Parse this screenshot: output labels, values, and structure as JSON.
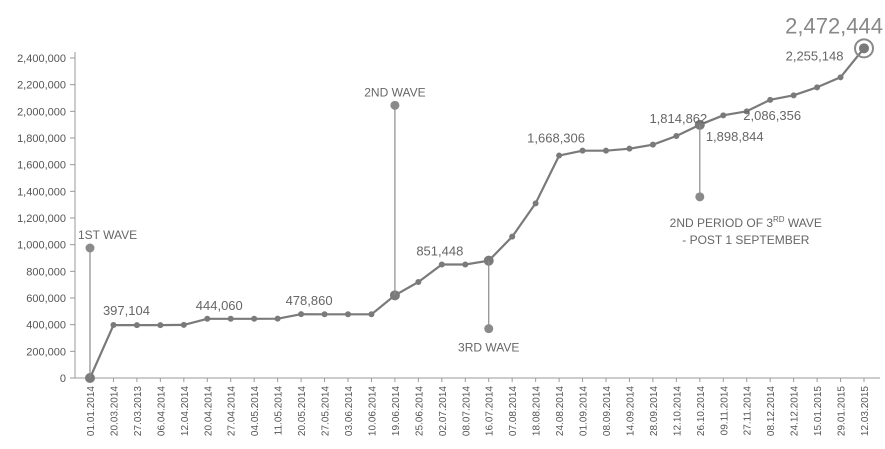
{
  "chart_data": {
    "type": "line",
    "xlabel": "",
    "ylabel": "",
    "ylim": [
      0,
      2400000
    ],
    "ytick_step": 200000,
    "ytick_labels": [
      "0",
      "200,000",
      "400,000",
      "600,000",
      "800,000",
      "1,000,000",
      "1,200,000",
      "1,400,000",
      "1,600,000",
      "1,800,000",
      "2,000,000",
      "2,200,000",
      "2,400,000"
    ],
    "grid": false,
    "categories": [
      "01.01.2014",
      "20.03.2014",
      "27.03.2013",
      "06.04.2014",
      "12.04.2014",
      "20.04.2014",
      "27.04.2014",
      "04.05.2014",
      "11.05.2014",
      "20.05.2014",
      "27.05.2014",
      "03.06.2014",
      "10.06.2014",
      "19.06.2014",
      "25.06.2014",
      "02.07.2014",
      "08.07.2014",
      "16.07.2014",
      "07.08.2014",
      "18.08.2014",
      "24.08.2014",
      "01.09.2014",
      "08.09.2014",
      "14.09.2014",
      "28.09.2014",
      "12.10.2014",
      "26.10.2014",
      "09.11.2014",
      "27.11.2014",
      "08.12.2014",
      "24.12.2014",
      "15.01.2015",
      "29.01.2015",
      "12.03.2015"
    ],
    "series": [
      {
        "name": "",
        "color": "#7a7a7a",
        "values": [
          0,
          397104,
          397000,
          397000,
          398000,
          444060,
          444000,
          444000,
          445000,
          478860,
          478000,
          478000,
          478000,
          620000,
          720000,
          851448,
          851000,
          880000,
          1060000,
          1310000,
          1668306,
          1705000,
          1705000,
          1720000,
          1750000,
          1814862,
          1898844,
          1970000,
          2000000,
          2086356,
          2120000,
          2180000,
          2255148,
          2472444
        ]
      }
    ],
    "data_labels": [
      {
        "index": 1,
        "text": "397,104"
      },
      {
        "index": 5,
        "text": "444,060"
      },
      {
        "index": 9,
        "text": "478,860"
      },
      {
        "index": 15,
        "text": "851,448"
      },
      {
        "index": 20,
        "text": "1,668,306"
      },
      {
        "index": 25,
        "text": "1,814,862"
      },
      {
        "index": 26,
        "text": "1,898,844"
      },
      {
        "index": 29,
        "text": "2,086,356"
      },
      {
        "index": 32,
        "text": "2,255,148"
      }
    ],
    "max_label": {
      "index": 33,
      "text": "2,472,444"
    },
    "annotations": [
      {
        "index": 0,
        "text": "1ST WAVE",
        "direction": "up"
      },
      {
        "index": 13,
        "text": "2ND WAVE",
        "direction": "up"
      },
      {
        "index": 17,
        "text": "3RD WAVE",
        "direction": "down"
      },
      {
        "index": 26,
        "line1_prefix": "2ND PERIOD OF 3",
        "line1_sup": "RD",
        "line1_suffix": " WAVE",
        "line2": "- POST 1  SEPTEMBER",
        "direction": "down"
      }
    ]
  }
}
